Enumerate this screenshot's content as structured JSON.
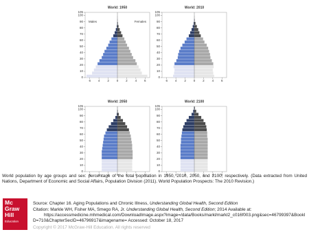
{
  "chart_data": [
    {
      "type": "pyramid",
      "title": "World: 1950",
      "y": [
        0,
        5,
        10,
        15,
        20,
        25,
        30,
        35,
        40,
        45,
        50,
        55,
        60,
        65,
        70,
        75,
        80,
        85,
        90,
        95,
        100
      ],
      "series": [
        {
          "name": "Males",
          "colors": [
            "#dfe2f2",
            "#dfe2f2",
            "#dfe2f2",
            "#dfe2f2",
            "#5a7cc8",
            "#5a7cc8",
            "#5a7cc8",
            "#5a7cc8",
            "#5a7cc8",
            "#5a7cc8",
            "#5a7cc8",
            "#5a7cc8",
            "#5a7cc8",
            "#2f3f66",
            "#2f3f66",
            "#2f3f66",
            "#2f3f66",
            "#2f3f66",
            "#2f3f66",
            "#2f3f66",
            "#2f3f66"
          ],
          "values": [
            6.7,
            5.5,
            5.1,
            4.7,
            4.3,
            3.9,
            3.4,
            3.1,
            2.8,
            2.4,
            2.0,
            1.7,
            1.3,
            0.9,
            0.6,
            0.35,
            0.15,
            0.06,
            0.02,
            0.01,
            0
          ]
        },
        {
          "name": "Females",
          "colors": [
            "#e6e6e6",
            "#e6e6e6",
            "#e6e6e6",
            "#e6e6e6",
            "#a8a8a8",
            "#a8a8a8",
            "#a8a8a8",
            "#a8a8a8",
            "#a8a8a8",
            "#a8a8a8",
            "#a8a8a8",
            "#a8a8a8",
            "#a8a8a8",
            "#4d4d4d",
            "#4d4d4d",
            "#4d4d4d",
            "#4d4d4d",
            "#4d4d4d",
            "#4d4d4d",
            "#4d4d4d",
            "#4d4d4d"
          ],
          "values": [
            6.5,
            5.3,
            5.0,
            4.6,
            4.2,
            3.9,
            3.4,
            3.1,
            2.8,
            2.5,
            2.1,
            1.8,
            1.5,
            1.1,
            0.8,
            0.5,
            0.25,
            0.1,
            0.03,
            0.01,
            0
          ]
        }
      ],
      "xlim": [
        -7,
        7
      ],
      "xticks": [
        {
          "value": -6,
          "label": "6"
        },
        {
          "value": -4,
          "label": "4"
        },
        {
          "value": -2,
          "label": "2"
        },
        0,
        2,
        4,
        6
      ],
      "ylim": [
        0,
        105
      ],
      "yticks": [
        0,
        10,
        20,
        30,
        40,
        50,
        60,
        70,
        80,
        90,
        100,
        105
      ]
    },
    {
      "type": "pyramid",
      "title": "World: 2010",
      "y": [
        0,
        5,
        10,
        15,
        20,
        25,
        30,
        35,
        40,
        45,
        50,
        55,
        60,
        65,
        70,
        75,
        80,
        85,
        90,
        95,
        100
      ],
      "series": [
        {
          "colors": [
            "#dfe2f2",
            "#dfe2f2",
            "#dfe2f2",
            "#dfe2f2",
            "#5a7cc8",
            "#5a7cc8",
            "#5a7cc8",
            "#5a7cc8",
            "#5a7cc8",
            "#5a7cc8",
            "#5a7cc8",
            "#5a7cc8",
            "#5a7cc8",
            "#2f3f66",
            "#2f3f66",
            "#2f3f66",
            "#2f3f66",
            "#2f3f66",
            "#2f3f66",
            "#2f3f66",
            "#2f3f66"
          ],
          "values": [
            4.6,
            4.4,
            4.3,
            4.5,
            4.3,
            3.9,
            3.6,
            3.5,
            3.3,
            3.0,
            2.6,
            2.1,
            1.7,
            1.2,
            0.9,
            0.6,
            0.35,
            0.15,
            0.04,
            0.01,
            0
          ]
        },
        {
          "colors": [
            "#e6e6e6",
            "#e6e6e6",
            "#e6e6e6",
            "#e6e6e6",
            "#a8a8a8",
            "#a8a8a8",
            "#a8a8a8",
            "#a8a8a8",
            "#a8a8a8",
            "#a8a8a8",
            "#a8a8a8",
            "#a8a8a8",
            "#a8a8a8",
            "#4d4d4d",
            "#4d4d4d",
            "#4d4d4d",
            "#4d4d4d",
            "#4d4d4d",
            "#4d4d4d",
            "#4d4d4d",
            "#4d4d4d"
          ],
          "values": [
            4.3,
            4.1,
            4.0,
            4.2,
            4.1,
            3.8,
            3.5,
            3.4,
            3.2,
            3.0,
            2.7,
            2.2,
            1.9,
            1.4,
            1.1,
            0.85,
            0.55,
            0.25,
            0.08,
            0.02,
            0
          ]
        }
      ],
      "xlim": [
        -7,
        7
      ],
      "xticks": [
        {
          "value": -6,
          "label": "6"
        },
        {
          "value": -4,
          "label": "4"
        },
        {
          "value": -2,
          "label": "2"
        },
        0,
        2,
        4,
        6
      ],
      "ylim": [
        0,
        105
      ],
      "yticks": [
        0,
        10,
        20,
        30,
        40,
        50,
        60,
        70,
        80,
        90,
        100,
        105
      ]
    },
    {
      "type": "pyramid",
      "title": "World: 2050",
      "y": [
        0,
        5,
        10,
        15,
        20,
        25,
        30,
        35,
        40,
        45,
        50,
        55,
        60,
        65,
        70,
        75,
        80,
        85,
        90,
        95,
        100
      ],
      "series": [
        {
          "colors": [
            "#dfe2f2",
            "#dfe2f2",
            "#dfe2f2",
            "#dfe2f2",
            "#5a7cc8",
            "#5a7cc8",
            "#5a7cc8",
            "#5a7cc8",
            "#5a7cc8",
            "#5a7cc8",
            "#5a7cc8",
            "#5a7cc8",
            "#5a7cc8",
            "#2f3f66",
            "#2f3f66",
            "#2f3f66",
            "#2f3f66",
            "#2f3f66",
            "#2f3f66",
            "#2f3f66",
            "#2f3f66"
          ],
          "values": [
            3.4,
            3.4,
            3.4,
            3.4,
            3.4,
            3.4,
            3.4,
            3.3,
            3.2,
            3.1,
            3.0,
            2.9,
            2.6,
            2.3,
            1.9,
            1.4,
            0.9,
            0.45,
            0.15,
            0.04,
            0.01
          ]
        },
        {
          "colors": [
            "#e6e6e6",
            "#e6e6e6",
            "#e6e6e6",
            "#e6e6e6",
            "#a8a8a8",
            "#a8a8a8",
            "#a8a8a8",
            "#a8a8a8",
            "#a8a8a8",
            "#a8a8a8",
            "#a8a8a8",
            "#a8a8a8",
            "#a8a8a8",
            "#4d4d4d",
            "#4d4d4d",
            "#4d4d4d",
            "#4d4d4d",
            "#4d4d4d",
            "#4d4d4d",
            "#4d4d4d",
            "#4d4d4d"
          ],
          "values": [
            3.2,
            3.2,
            3.2,
            3.2,
            3.3,
            3.3,
            3.3,
            3.2,
            3.2,
            3.1,
            3.0,
            2.9,
            2.7,
            2.5,
            2.1,
            1.7,
            1.2,
            0.7,
            0.3,
            0.08,
            0.02
          ]
        }
      ],
      "xlim": [
        -7,
        7
      ],
      "xticks": [
        {
          "value": -6,
          "label": "6"
        },
        {
          "value": -4,
          "label": "4"
        },
        {
          "value": -2,
          "label": "2"
        },
        0,
        2,
        4,
        6
      ],
      "ylim": [
        0,
        105
      ],
      "yticks": [
        0,
        10,
        20,
        30,
        40,
        50,
        60,
        70,
        80,
        90,
        100,
        105
      ]
    },
    {
      "type": "pyramid",
      "title": "World: 2100",
      "y": [
        0,
        5,
        10,
        15,
        20,
        25,
        30,
        35,
        40,
        45,
        50,
        55,
        60,
        65,
        70,
        75,
        80,
        85,
        90,
        95,
        100
      ],
      "series": [
        {
          "colors": [
            "#dfe2f2",
            "#dfe2f2",
            "#dfe2f2",
            "#dfe2f2",
            "#5a7cc8",
            "#5a7cc8",
            "#5a7cc8",
            "#5a7cc8",
            "#5a7cc8",
            "#5a7cc8",
            "#5a7cc8",
            "#5a7cc8",
            "#5a7cc8",
            "#2f3f66",
            "#2f3f66",
            "#2f3f66",
            "#2f3f66",
            "#2f3f66",
            "#2f3f66",
            "#2f3f66",
            "#2f3f66"
          ],
          "values": [
            3.0,
            3.0,
            3.0,
            3.0,
            3.0,
            3.0,
            3.0,
            3.0,
            3.0,
            2.9,
            2.9,
            2.8,
            2.7,
            2.6,
            2.4,
            2.1,
            1.7,
            1.2,
            0.6,
            0.25,
            0.08
          ]
        },
        {
          "colors": [
            "#e6e6e6",
            "#e6e6e6",
            "#e6e6e6",
            "#e6e6e6",
            "#a8a8a8",
            "#a8a8a8",
            "#a8a8a8",
            "#a8a8a8",
            "#a8a8a8",
            "#a8a8a8",
            "#a8a8a8",
            "#a8a8a8",
            "#a8a8a8",
            "#4d4d4d",
            "#4d4d4d",
            "#4d4d4d",
            "#4d4d4d",
            "#4d4d4d",
            "#4d4d4d",
            "#4d4d4d",
            "#4d4d4d"
          ],
          "values": [
            2.9,
            2.9,
            2.9,
            2.9,
            2.9,
            2.9,
            2.9,
            2.9,
            2.9,
            2.9,
            2.9,
            2.8,
            2.8,
            2.7,
            2.6,
            2.4,
            2.0,
            1.5,
            0.9,
            0.4,
            0.12
          ]
        }
      ],
      "xlim": [
        -7,
        7
      ],
      "xticks": [
        {
          "value": -6,
          "label": "6"
        },
        {
          "value": -4,
          "label": "4"
        },
        {
          "value": -2,
          "label": "2"
        },
        0,
        2,
        4,
        6
      ],
      "ylim": [
        0,
        105
      ],
      "yticks": [
        0,
        10,
        20,
        30,
        40,
        50,
        60,
        70,
        80,
        90,
        100,
        105
      ]
    }
  ],
  "caption": "World population by age groups and sex: percentage of the total population in 1950, 2010, 2050, and 2100, respectively. (Data extracted from United Nations, Department of Economic and Social Affairs, Population Division (2011). World Population Prospects: The 2010 Revision.)",
  "source": {
    "prefix": "Source: Chapter 16. Aging Populations and Chronic Illness, ",
    "book": "Understanding Global Health, Second Edition"
  },
  "citation": {
    "prefix": "Citation: Markle WH, Fisher MA, Smego RA, Jr. ",
    "book": "Understanding Global Health, Second Edition",
    "suffix": "; 2014 Available at:",
    "url": "https://accessmedicine.mhmedical.com/DownloadImage.aspx?image=/data/Books/markl/markl2_c016f003.png&sec=46799397&BookID=710&ChapterSecID=46796917&imagename=",
    "accessed": " Accessed: October 18, 2017"
  },
  "copyright": "Copyright © 2017 McGraw-Hill Education. All rights reserved",
  "logo": [
    "Mc",
    "Graw",
    "Hill",
    "Education"
  ]
}
